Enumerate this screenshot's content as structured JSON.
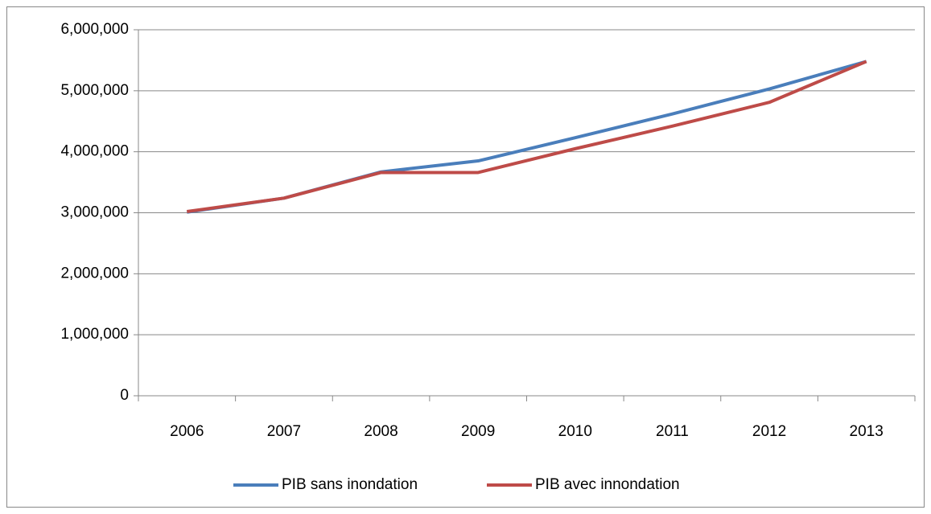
{
  "chart_data": {
    "type": "line",
    "categories": [
      "2006",
      "2007",
      "2008",
      "2009",
      "2010",
      "2011",
      "2012",
      "2013"
    ],
    "series": [
      {
        "name": "PIB sans inondation",
        "color": "#4a7ebb",
        "values": [
          3010000,
          3240000,
          3670000,
          3850000,
          4230000,
          4620000,
          5030000,
          5480000
        ]
      },
      {
        "name": "PIB avec innondation",
        "color": "#be4b48",
        "values": [
          3020000,
          3240000,
          3660000,
          3660000,
          4050000,
          4420000,
          4810000,
          5480000
        ]
      }
    ],
    "ylim": [
      0,
      6000000
    ],
    "yticks": [
      0,
      {
        "value": 1000000,
        "label": "1,000,000"
      },
      {
        "value": 2000000,
        "label": "2,000,000"
      },
      {
        "value": 3000000,
        "label": "3,000,000"
      },
      {
        "value": 4000000,
        "label": "4,000,000"
      },
      {
        "value": 5000000,
        "label": "5,000,000"
      },
      {
        "value": 6000000,
        "label": "6,000,000"
      }
    ],
    "grid": true,
    "legend": "bottom"
  }
}
